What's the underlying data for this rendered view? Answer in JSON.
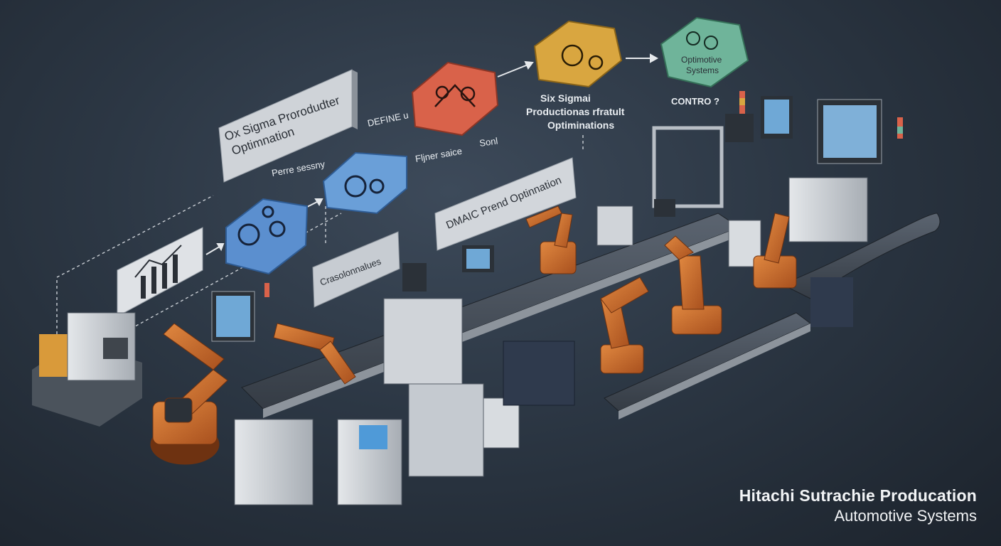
{
  "labels": {
    "panel_main_line1": "Ox Sigma Prorodudter",
    "panel_main_line2": "Optimnation",
    "perre_sessny": "Perre sessny",
    "define_label": "DEFINE u",
    "filter_label": "Fljner saice",
    "sonl_label": "Sonl",
    "six_sigma_line1": "Six Sigmai",
    "six_sigma_line2": "Productionas rfratult",
    "six_sigma_line3": "Optiminations",
    "optimotive_line1": "Optimotive",
    "optimotive_line2": "Systems",
    "control_label": "CONTRO ?",
    "dmaic_label": "DMAIC Prend Optinnation",
    "crasolonnalues": "Crasolonnalues"
  },
  "brand": {
    "line1": "Hitachi  Sutrachie Producation",
    "line2": "Automotive Systems"
  },
  "colors": {
    "background": "#2c3744",
    "robot_orange": "#c8672b",
    "hex_red": "#d9624a",
    "hex_yellow": "#d9a640",
    "hex_green": "#6fb49a",
    "hex_blue": "#5b8fcf",
    "panel_gray": "#cfd3d8"
  },
  "icons": [
    "chart-icon",
    "gears-icon",
    "wrench-icon",
    "gauge-icon"
  ]
}
